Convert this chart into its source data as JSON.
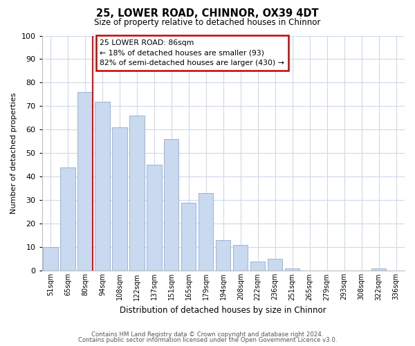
{
  "title": "25, LOWER ROAD, CHINNOR, OX39 4DT",
  "subtitle": "Size of property relative to detached houses in Chinnor",
  "xlabel": "Distribution of detached houses by size in Chinnor",
  "ylabel": "Number of detached properties",
  "bar_labels": [
    "51sqm",
    "65sqm",
    "80sqm",
    "94sqm",
    "108sqm",
    "122sqm",
    "137sqm",
    "151sqm",
    "165sqm",
    "179sqm",
    "194sqm",
    "208sqm",
    "222sqm",
    "236sqm",
    "251sqm",
    "265sqm",
    "279sqm",
    "293sqm",
    "308sqm",
    "322sqm",
    "336sqm"
  ],
  "bar_values": [
    10,
    44,
    76,
    72,
    61,
    66,
    45,
    56,
    29,
    33,
    13,
    11,
    4,
    5,
    1,
    0,
    0,
    0,
    0,
    1,
    0
  ],
  "bar_color": "#c8d9f0",
  "bar_edge_color": "#9ab4d8",
  "ylim": [
    0,
    100
  ],
  "yticks": [
    0,
    10,
    20,
    30,
    40,
    50,
    60,
    70,
    80,
    90,
    100
  ],
  "red_line_bar_index": 2,
  "annotation_title": "25 LOWER ROAD: 86sqm",
  "annotation_line1": "← 18% of detached houses are smaller (93)",
  "annotation_line2": "82% of semi-detached houses are larger (430) →",
  "annotation_box_color": "#ffffff",
  "annotation_box_edge": "#cc0000",
  "footer_line1": "Contains HM Land Registry data © Crown copyright and database right 2024.",
  "footer_line2": "Contains public sector information licensed under the Open Government Licence v3.0.",
  "background_color": "#ffffff",
  "grid_color": "#ccd9e8"
}
